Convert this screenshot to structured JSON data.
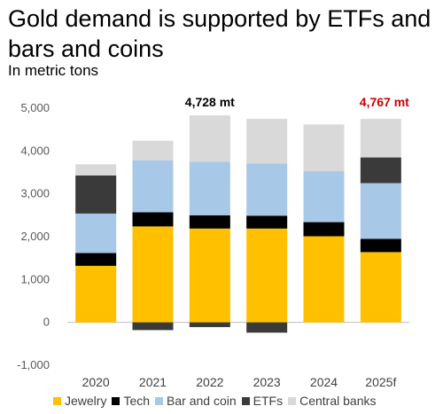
{
  "title": "Gold demand is supported by ETFs and bars and coins",
  "subtitle": "In metric tons",
  "colors": {
    "Jewelry": "#FFC000",
    "Tech": "#000000",
    "Bar and coin": "#A8C8E8",
    "ETFs": "#3A3A3A",
    "Central banks": "#D9D9D9",
    "annotation_2022": "#000000",
    "annotation_2025": "#CC0000"
  },
  "chart_data": {
    "type": "bar",
    "stacked": true,
    "categories": [
      "2020",
      "2021",
      "2022",
      "2023",
      "2024",
      "2025f"
    ],
    "series": [
      {
        "name": "Jewelry",
        "values": [
          1320,
          2240,
          2190,
          2190,
          2010,
          1640
        ]
      },
      {
        "name": "Tech",
        "values": [
          300,
          330,
          310,
          300,
          330,
          310
        ]
      },
      {
        "name": "Bar and coin",
        "values": [
          920,
          1210,
          1250,
          1220,
          1190,
          1300
        ]
      },
      {
        "name": "ETFs",
        "values": [
          890,
          -180,
          -110,
          -240,
          0,
          600
        ]
      },
      {
        "name": "Central banks",
        "values": [
          260,
          460,
          1080,
          1040,
          1090,
          900
        ]
      }
    ],
    "ylim": [
      -1000,
      5000
    ],
    "yticks": [
      "5,000",
      "4,000",
      "3,000",
      "2,000",
      "1,000",
      "0",
      "-1,000"
    ],
    "ytick_values": [
      5000,
      4000,
      3000,
      2000,
      1000,
      0,
      -1000
    ],
    "grid": false,
    "legend": "bottom",
    "annotations": [
      {
        "text": "4,728 mt",
        "category": "2022",
        "value": 5150
      },
      {
        "text": "4,767 mt",
        "category": "2025f",
        "value": 5150
      }
    ]
  }
}
